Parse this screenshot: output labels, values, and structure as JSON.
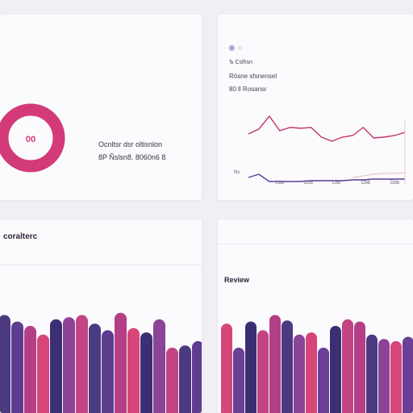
{
  "donut_card": {
    "center_label": "00",
    "summary_title": "Ocnltsr dsr oltisnlon",
    "summary_value": "8P Ñslsn8. 8060n6 8",
    "colors": {
      "ring": "#d33a78",
      "track": "#f3e8ef"
    }
  },
  "line_card": {
    "legend_label": "Ъ Cslhsn",
    "subtitle_1": "Rösne sfsnensel",
    "subtitle_2": "80 ll Rosansr",
    "y_label": "Ns",
    "x_ticks": [
      "Lbb",
      "Dbb",
      "Lbb",
      "Dbb",
      "Dbb"
    ],
    "colors": {
      "top_line": "#c2376b",
      "bottom_line": "#5a3a9a",
      "faint_line": "#e6b9c9",
      "dot1": "#b6a8d0",
      "dot2": "#ece7f2"
    },
    "chart_data": {
      "type": "line",
      "x": [
        0,
        1,
        2,
        3,
        4,
        5,
        6,
        7,
        8,
        9,
        10,
        11,
        12,
        13,
        14,
        15
      ],
      "series": [
        {
          "values": [
            62,
            68,
            84,
            66,
            70,
            69,
            70,
            58,
            53,
            58,
            60,
            70,
            57,
            58,
            60,
            64
          ]
        },
        {
          "values": [
            8,
            12,
            3,
            3,
            3,
            3,
            4,
            4,
            4,
            4,
            5,
            5,
            6,
            6,
            6,
            6
          ]
        },
        {
          "values": [
            null,
            null,
            null,
            null,
            null,
            null,
            null,
            null,
            null,
            null,
            8,
            10,
            12,
            13,
            13,
            14
          ]
        }
      ],
      "ylim": [
        0,
        100
      ]
    }
  },
  "bars_left_card": {
    "title": "coralterc",
    "colors": [
      "#4b3a80",
      "#5e3c8e",
      "#b43f86",
      "#d64679",
      "#3b2f74",
      "#8b4497",
      "#c34483"
    ],
    "chart_data": {
      "type": "bar",
      "values": [
        90,
        84,
        80,
        72,
        86,
        88,
        90,
        82,
        76,
        92,
        78,
        74,
        86,
        60,
        62,
        66
      ],
      "ylim": [
        0,
        100
      ]
    }
  },
  "bars_right_card": {
    "title": "Review",
    "chart_data": {
      "type": "bar",
      "values": [
        82,
        60,
        84,
        76,
        90,
        85,
        72,
        74,
        60,
        80,
        86,
        84,
        72,
        68,
        66,
        70
      ],
      "ylim": [
        0,
        100
      ]
    }
  }
}
